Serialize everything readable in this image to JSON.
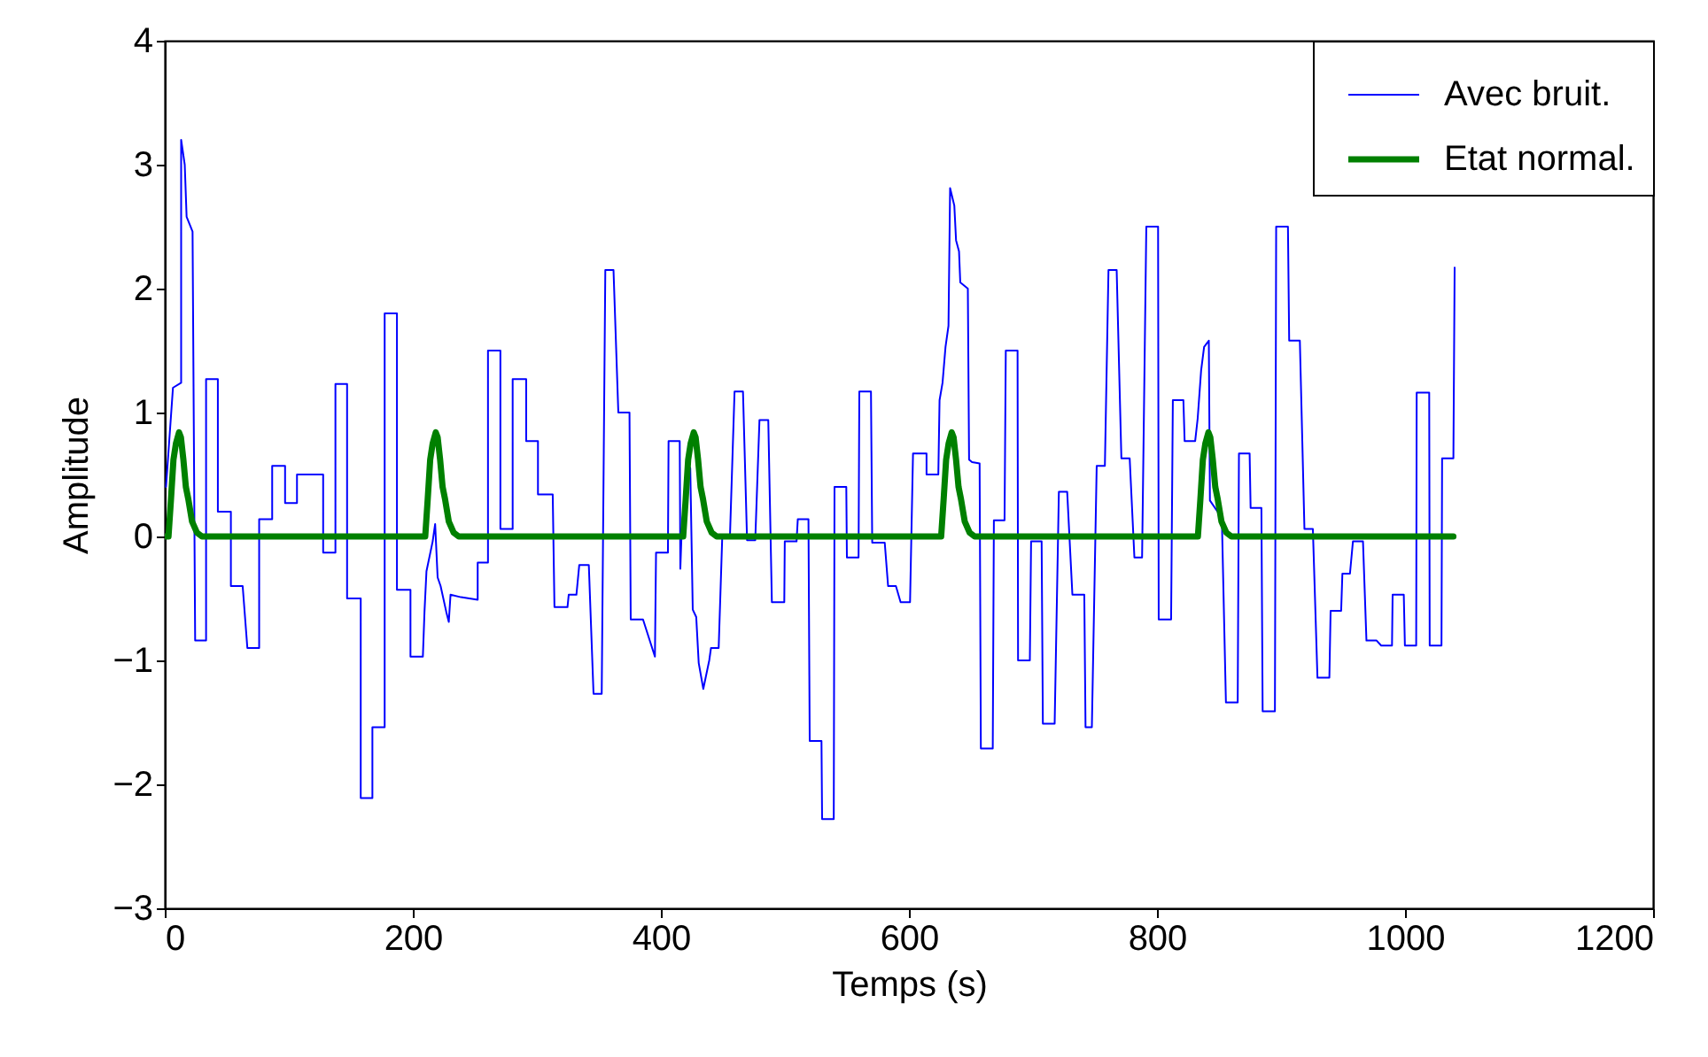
{
  "chart_data": {
    "type": "line",
    "xlabel": "Temps (s)",
    "ylabel": "Amplitude",
    "xlim": [
      0,
      1200
    ],
    "xticks": [
      0,
      200,
      400,
      600,
      800,
      1000,
      1200
    ],
    "ylim": [
      -3,
      4
    ],
    "yticks": [
      -3,
      -2,
      -1,
      0,
      1,
      2,
      3,
      4
    ],
    "legend": "top right",
    "series": [
      {
        "name": "Avec bruit.",
        "color": "#0000ff",
        "x": [
          1,
          6.6,
          13.2,
          13.2,
          16.1,
          17.6,
          22.4,
          24.5,
          33.3,
          33.3,
          42.8,
          42.8,
          53.3,
          53.3,
          62.8,
          66.6,
          76.1,
          76.1,
          86.6,
          86.6,
          97,
          97,
          106.6,
          106.6,
          127.7,
          127.7,
          137.6,
          137.6,
          147,
          147,
          158,
          158,
          167.4,
          167.4,
          177.3,
          177.3,
          187.2,
          187.2,
          198.1,
          198.1,
          208.1,
          209.4,
          211,
          216,
          218,
          220,
          222.4,
          227,
          229,
          230.4,
          238.8,
          252.3,
          252.3,
          260.6,
          260.6,
          270.6,
          270.6,
          280.5,
          280.5,
          291.4,
          291.4,
          300.9,
          300.9,
          312.8,
          314.2,
          324.7,
          325.7,
          331.9,
          334.2,
          341.9,
          345.7,
          352.3,
          355.2,
          361.8,
          365.7,
          374.7,
          375.7,
          385.6,
          395.2,
          396.1,
          405.7,
          406.2,
          415.2,
          415.7,
          416.6,
          421,
          423.7,
          425.7,
          428.5,
          430.5,
          434.2,
          439,
          440.4,
          446.6,
          449.5,
          455.7,
          459.4,
          466.2,
          469.5,
          476.1,
          479.5,
          486.6,
          489.5,
          499.5,
          499.9,
          509.4,
          510.4,
          519,
          520,
          529.5,
          530,
          539.4,
          540,
          549.5,
          550,
          559.4,
          560,
          569.4,
          570.4,
          580.5,
          583.2,
          589.5,
          593.3,
          600.9,
          603.3,
          614.2,
          614.2,
          623.7,
          624.7,
          627.1,
          629.5,
          631.9,
          633.2,
          636.6,
          638,
          640.4,
          641.4,
          647.5,
          648.5,
          650.9,
          657,
          658,
          667.6,
          668.5,
          677.1,
          678.1,
          687.6,
          688,
          697.5,
          698.5,
          707,
          708,
          717.5,
          720.9,
          727.6,
          731.8,
          741.4,
          742.4,
          747.5,
          751.4,
          758,
          760.9,
          767.5,
          771.3,
          778,
          781.8,
          788,
          791.4,
          800.9,
          801.4,
          811.4,
          812.8,
          821.3,
          822.3,
          830.8,
          832.8,
          835.6,
          838,
          841.8,
          842.7,
          852.3,
          855.6,
          865.1,
          866.1,
          874.7,
          875.5,
          884.2,
          885.2,
          895.1,
          896.1,
          905.6,
          906.6,
          915.2,
          918.9,
          925.7,
          929.4,
          939,
          940,
          948.5,
          949.5,
          955.6,
          958,
          966.1,
          968.9,
          977.1,
          980.8,
          989.5,
          990,
          999,
          999.9,
          1009,
          1009.4,
          1019.5,
          1019.9,
          1029.4,
          1029.9,
          1039,
          1040
        ],
        "values": [
          0.4,
          1.2,
          1.24,
          3.2,
          3.0,
          2.58,
          2.46,
          -0.84,
          -0.84,
          1.27,
          1.27,
          0.2,
          0.2,
          -0.4,
          -0.4,
          -0.9,
          -0.9,
          0.14,
          0.14,
          0.57,
          0.57,
          0.27,
          0.27,
          0.5,
          0.5,
          -0.13,
          -0.13,
          1.23,
          1.23,
          -0.5,
          -0.5,
          -2.11,
          -2.11,
          -1.54,
          -1.54,
          1.8,
          1.8,
          -0.43,
          -0.43,
          -0.97,
          -0.97,
          -0.61,
          -0.28,
          -0.04,
          0.1,
          -0.33,
          -0.4,
          -0.61,
          -0.69,
          -0.47,
          -0.49,
          -0.51,
          -0.21,
          -0.21,
          1.5,
          1.5,
          0.06,
          0.06,
          1.27,
          1.27,
          0.77,
          0.77,
          0.34,
          0.34,
          -0.57,
          -0.57,
          -0.47,
          -0.47,
          -0.23,
          -0.23,
          -1.27,
          -1.27,
          2.15,
          2.15,
          1.0,
          1.0,
          -0.67,
          -0.67,
          -0.97,
          -0.13,
          -0.13,
          0.77,
          0.77,
          -0.26,
          0.0,
          0.6,
          0.55,
          -0.59,
          -0.65,
          -1.02,
          -1.23,
          -1.0,
          -0.9,
          -0.9,
          0,
          0,
          1.17,
          1.17,
          -0.03,
          -0.03,
          0.94,
          0.94,
          -0.53,
          -0.53,
          -0.04,
          -0.04,
          0.14,
          0.14,
          -1.65,
          -1.65,
          -2.28,
          -2.28,
          0.4,
          0.4,
          -0.17,
          -0.17,
          1.17,
          1.17,
          -0.05,
          -0.05,
          -0.4,
          -0.4,
          -0.53,
          -0.53,
          0.67,
          0.67,
          0.5,
          0.5,
          1.1,
          1.24,
          1.53,
          1.7,
          2.81,
          2.67,
          2.39,
          2.3,
          2.05,
          2.0,
          0.62,
          0.6,
          0.59,
          -1.71,
          -1.71,
          0.13,
          0.13,
          1.5,
          1.5,
          -1.0,
          -1.0,
          -0.04,
          -0.04,
          -1.51,
          -1.51,
          0.36,
          0.36,
          -0.47,
          -0.47,
          -1.54,
          -1.54,
          0.57,
          0.57,
          2.15,
          2.15,
          0.63,
          0.63,
          -0.17,
          -0.17,
          2.5,
          2.5,
          -0.67,
          -0.67,
          1.1,
          1.1,
          0.77,
          0.77,
          0.95,
          1.34,
          1.53,
          1.58,
          0.29,
          0.15,
          -1.34,
          -1.34,
          0.67,
          0.67,
          0.23,
          0.23,
          -1.41,
          -1.41,
          2.5,
          2.5,
          1.58,
          1.58,
          0.06,
          0.06,
          -1.14,
          -1.14,
          -0.6,
          -0.6,
          -0.3,
          -0.3,
          -0.04,
          -0.04,
          -0.84,
          -0.84,
          -0.88,
          -0.88,
          -0.47,
          -0.47,
          -0.88,
          -0.88,
          1.16,
          1.16,
          -0.88,
          -0.88,
          0.63,
          0.63,
          2.17
        ]
      },
      {
        "name": "Etat normal.",
        "color": "#008000",
        "x": [
          0,
          3,
          5,
          7,
          9,
          11.5,
          13,
          15,
          17,
          19,
          22,
          26,
          30,
          210,
          212,
          214,
          216,
          218.5,
          220,
          222,
          224,
          226,
          229,
          233,
          237,
          418,
          420,
          422,
          424,
          426.5,
          428,
          430,
          432,
          434,
          437,
          441,
          445,
          626,
          628,
          630,
          632,
          634.5,
          636,
          638,
          640,
          642,
          645,
          649,
          653,
          833,
          835,
          837,
          839,
          841.5,
          843,
          845,
          847,
          849,
          852,
          856,
          860,
          1039
        ],
        "values": [
          0,
          0,
          0.3,
          0.62,
          0.75,
          0.84,
          0.8,
          0.62,
          0.4,
          0.3,
          0.12,
          0.03,
          0,
          0,
          0.3,
          0.62,
          0.75,
          0.84,
          0.8,
          0.62,
          0.4,
          0.3,
          0.12,
          0.03,
          0,
          0,
          0.3,
          0.62,
          0.75,
          0.84,
          0.8,
          0.62,
          0.4,
          0.3,
          0.12,
          0.03,
          0,
          0,
          0.3,
          0.62,
          0.75,
          0.84,
          0.8,
          0.62,
          0.4,
          0.3,
          0.12,
          0.03,
          0,
          0,
          0.3,
          0.62,
          0.75,
          0.84,
          0.8,
          0.62,
          0.4,
          0.3,
          0.12,
          0.03,
          0,
          0
        ]
      }
    ]
  }
}
